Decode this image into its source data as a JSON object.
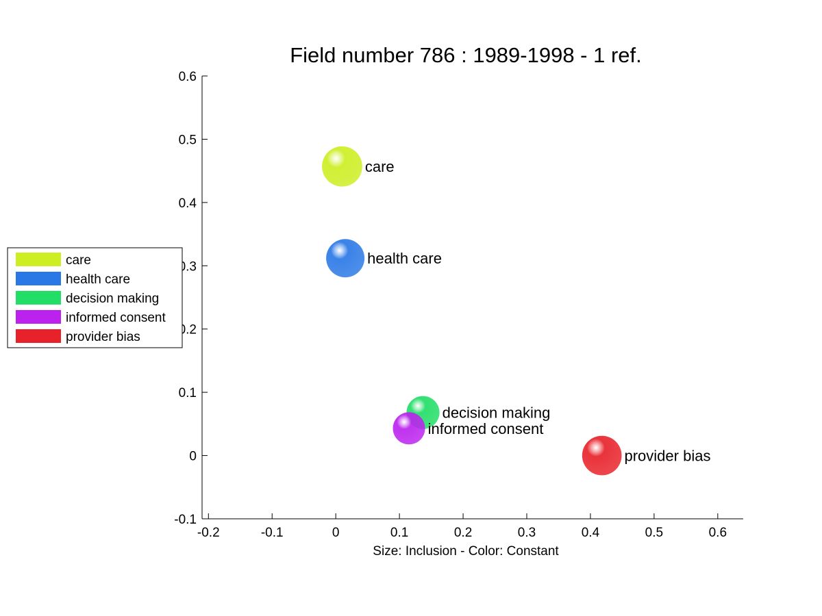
{
  "chart_data": {
    "type": "scatter",
    "title": "Field number 786 : 1989-1998  - 1 ref.",
    "xlabel": "Size: Inclusion - Color: Constant",
    "ylabel": "",
    "xlim": [
      -0.21,
      0.64
    ],
    "ylim": [
      -0.1,
      0.6
    ],
    "xticks": [
      -0.2,
      -0.1,
      0,
      0.1,
      0.2,
      0.3,
      0.4,
      0.5,
      0.6
    ],
    "yticks": [
      -0.1,
      0,
      0.1,
      0.2,
      0.3,
      0.4,
      0.5,
      0.6
    ],
    "xtick_labels": [
      "-0.2",
      "-0.1",
      "0",
      "0.1",
      "0.2",
      "0.3",
      "0.4",
      "0.5",
      "0.6"
    ],
    "ytick_labels": [
      "-0.1",
      "0",
      "0.1",
      "0.2",
      "0.3",
      "0.4",
      "0.5",
      "0.6"
    ],
    "grid": false,
    "legend_position": "left",
    "points": [
      {
        "name": "care",
        "x": 0.01,
        "y": 0.457,
        "size": 1.05,
        "color": "#ccee22"
      },
      {
        "name": "health care",
        "x": 0.015,
        "y": 0.312,
        "size": 1.0,
        "color": "#2a78e6"
      },
      {
        "name": "decision making",
        "x": 0.137,
        "y": 0.068,
        "size": 0.86,
        "color": "#22dd66"
      },
      {
        "name": "informed consent",
        "x": 0.115,
        "y": 0.043,
        "size": 0.84,
        "color": "#bb22ee"
      },
      {
        "name": "provider bias",
        "x": 0.418,
        "y": 0.0,
        "size": 1.03,
        "color": "#e8222a"
      }
    ],
    "legend": [
      {
        "label": "care",
        "color": "#ccee22"
      },
      {
        "label": "health care",
        "color": "#2a78e6"
      },
      {
        "label": "decision making",
        "color": "#22dd66"
      },
      {
        "label": "informed consent",
        "color": "#bb22ee"
      },
      {
        "label": "provider bias",
        "color": "#e8222a"
      }
    ]
  }
}
